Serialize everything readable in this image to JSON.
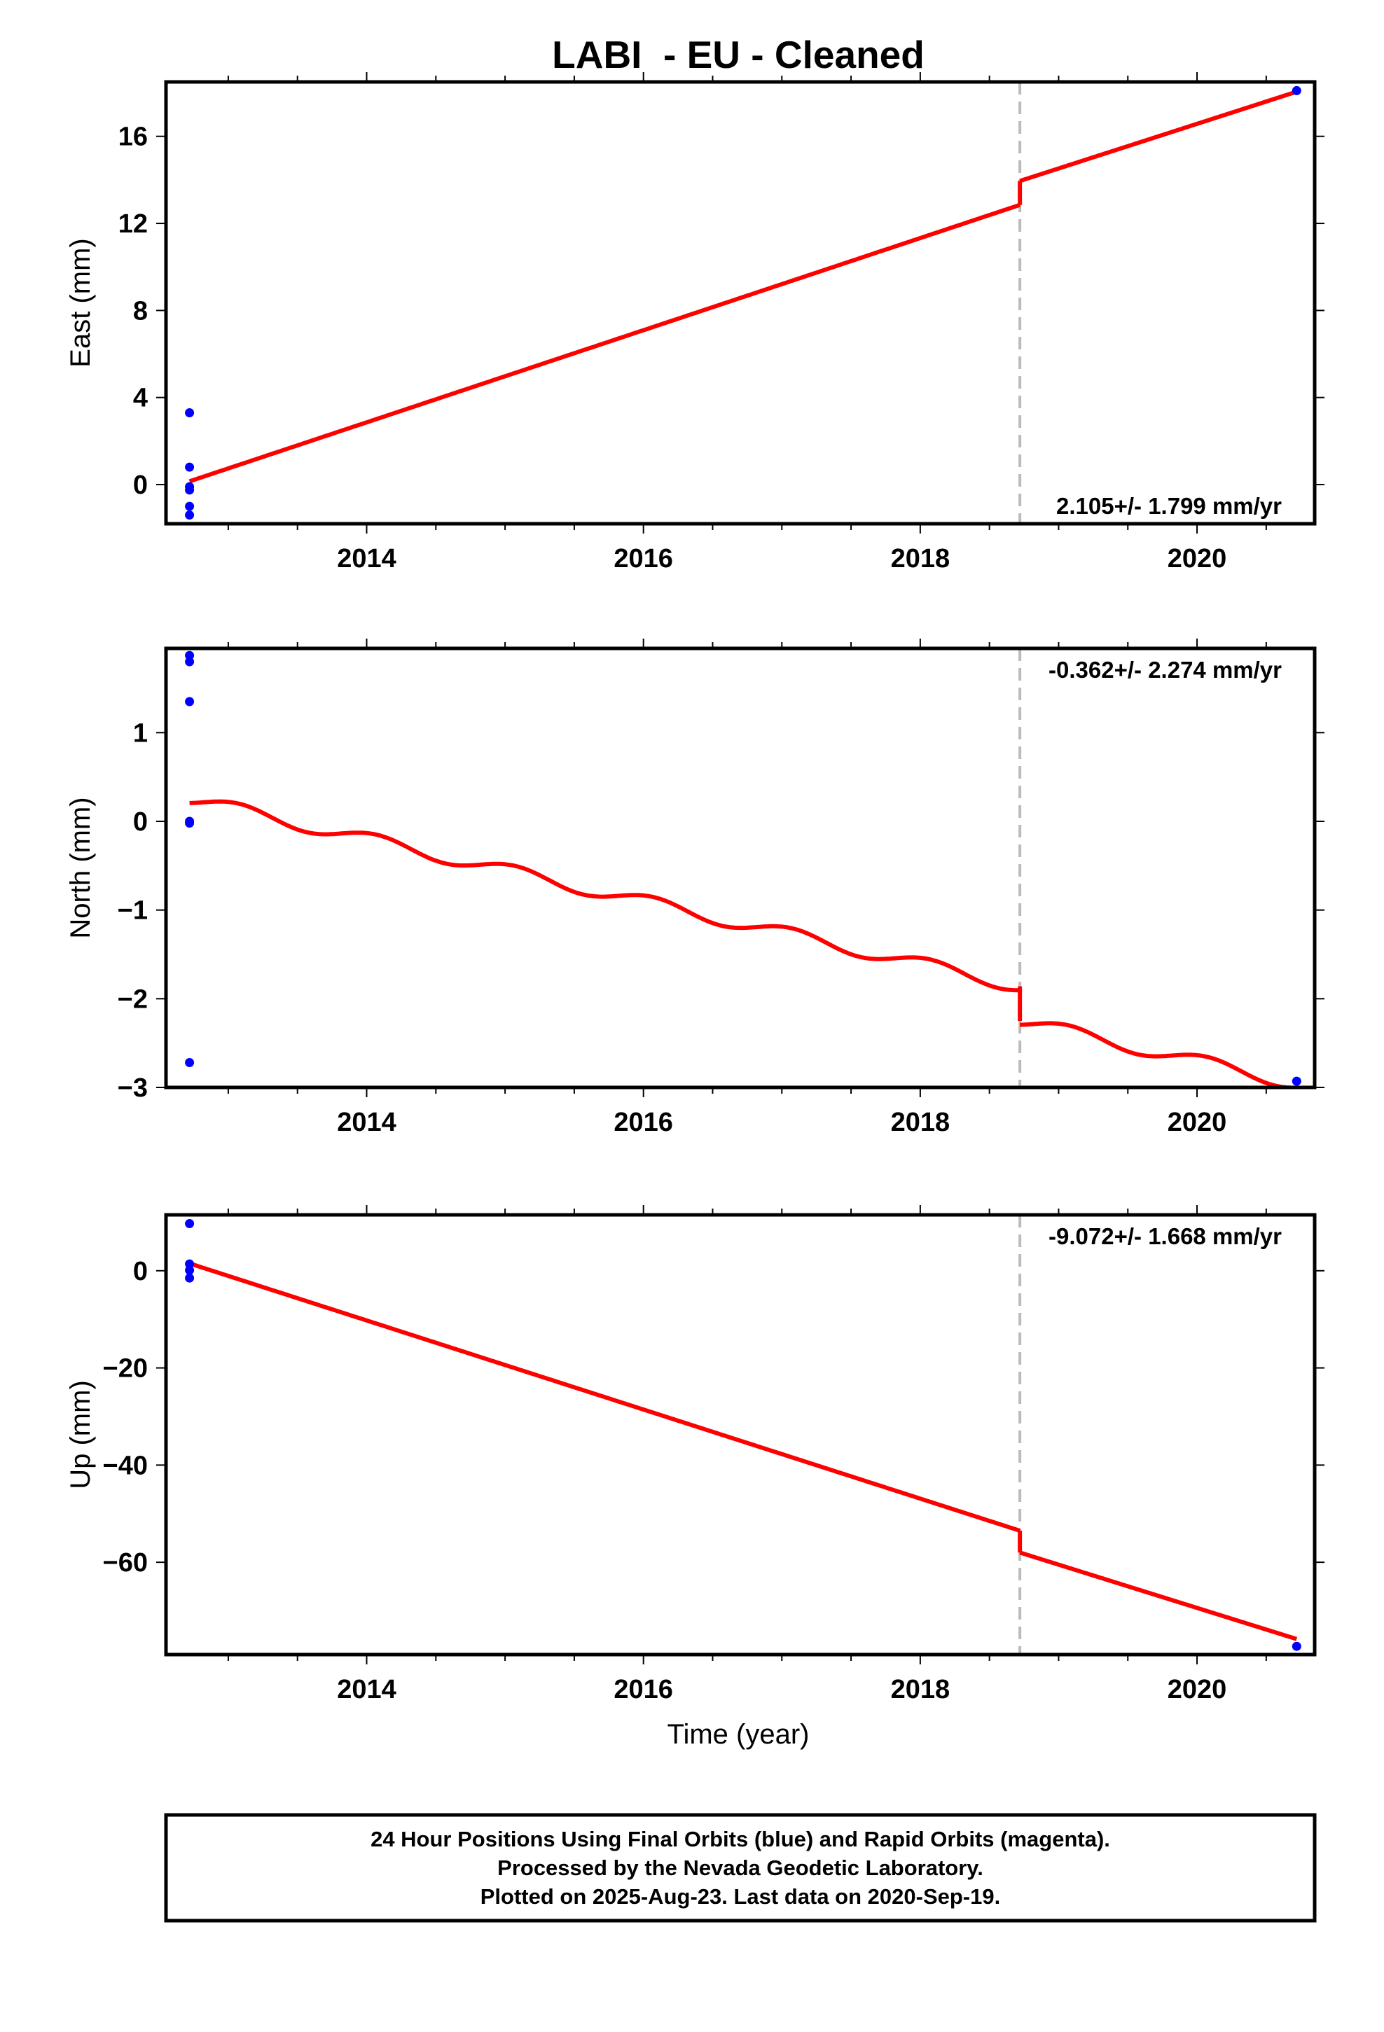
{
  "chart_data": {
    "type": "line",
    "title": "LABI  - EU - Cleaned",
    "xlabel": "Time (year)",
    "xlim": [
      2012.55,
      2020.85
    ],
    "xticks": [
      2014,
      2016,
      2018,
      2020
    ],
    "xtick_labels": [
      "2014",
      "2016",
      "2018",
      "2020"
    ],
    "offset_epoch": 2018.72,
    "colors": {
      "model": "#ff0000",
      "final_orbits": "#0000ff",
      "offset_line": "#bbbbbb",
      "frame": "#000000"
    },
    "panels": [
      {
        "name": "east",
        "ylabel": "East (mm)",
        "ylim": [
          -1.8,
          18.5
        ],
        "yticks": [
          0,
          4,
          8,
          12,
          16
        ],
        "ytick_labels": [
          "0",
          "4",
          "8",
          "12",
          "16"
        ],
        "rate_text": "2.105+/- 1.799 mm/yr",
        "rate_position": "bottom-right",
        "model_segments": [
          [
            [
              2012.72,
              0.15
            ],
            [
              2018.72,
              12.85
            ]
          ],
          [
            [
              2018.72,
              13.95
            ],
            [
              2020.72,
              18.05
            ]
          ]
        ],
        "seasonal_amplitude": 0,
        "points": [
          [
            2012.72,
            3.3
          ],
          [
            2012.72,
            0.8
          ],
          [
            2012.72,
            -0.1
          ],
          [
            2012.72,
            -0.25
          ],
          [
            2012.72,
            -1.0
          ],
          [
            2012.72,
            -1.4
          ],
          [
            2020.72,
            18.1
          ]
        ]
      },
      {
        "name": "north",
        "ylabel": "North (mm)",
        "ylim": [
          -3.0,
          1.95
        ],
        "yticks": [
          -3,
          -2,
          -1,
          0,
          1
        ],
        "ytick_labels": [
          "−3",
          "−2",
          "−1",
          "0",
          "1"
        ],
        "rate_text": "-0.362+/- 2.274 mm/yr",
        "rate_position": "top-right",
        "model_segments": [
          [
            [
              2012.72,
              0.25
            ],
            [
              2018.72,
              -1.86
            ]
          ],
          [
            [
              2018.72,
              -2.25
            ],
            [
              2020.72,
              -2.96
            ]
          ]
        ],
        "seasonal_amplitude": 0.075,
        "points": [
          [
            2012.72,
            1.87
          ],
          [
            2012.72,
            1.8
          ],
          [
            2012.72,
            1.35
          ],
          [
            2012.72,
            0.0
          ],
          [
            2012.72,
            -0.02
          ],
          [
            2012.72,
            -2.72
          ],
          [
            2020.72,
            -2.93
          ]
        ]
      },
      {
        "name": "up",
        "ylabel": "Up (mm)",
        "ylim": [
          -79,
          11.5
        ],
        "yticks": [
          -60,
          -40,
          -20,
          0
        ],
        "ytick_labels": [
          "−60",
          "−40",
          "−20",
          "0"
        ],
        "rate_text": "-9.072+/- 1.668 mm/yr",
        "rate_position": "top-right",
        "model_segments": [
          [
            [
              2012.72,
              1.5
            ],
            [
              2018.72,
              -53.5
            ]
          ],
          [
            [
              2018.72,
              -58.0
            ],
            [
              2020.72,
              -75.8
            ]
          ]
        ],
        "seasonal_amplitude": 0,
        "points": [
          [
            2012.72,
            9.7
          ],
          [
            2012.72,
            1.4
          ],
          [
            2012.72,
            0.1
          ],
          [
            2012.72,
            -1.5
          ],
          [
            2020.72,
            -77.3
          ]
        ]
      }
    ]
  },
  "footer": {
    "lines": [
      "24 Hour Positions Using Final Orbits (blue) and Rapid Orbits (magenta).",
      "Processed by the Nevada Geodetic Laboratory.",
      "Plotted on 2025-Aug-23. Last data on 2020-Sep-19."
    ]
  }
}
